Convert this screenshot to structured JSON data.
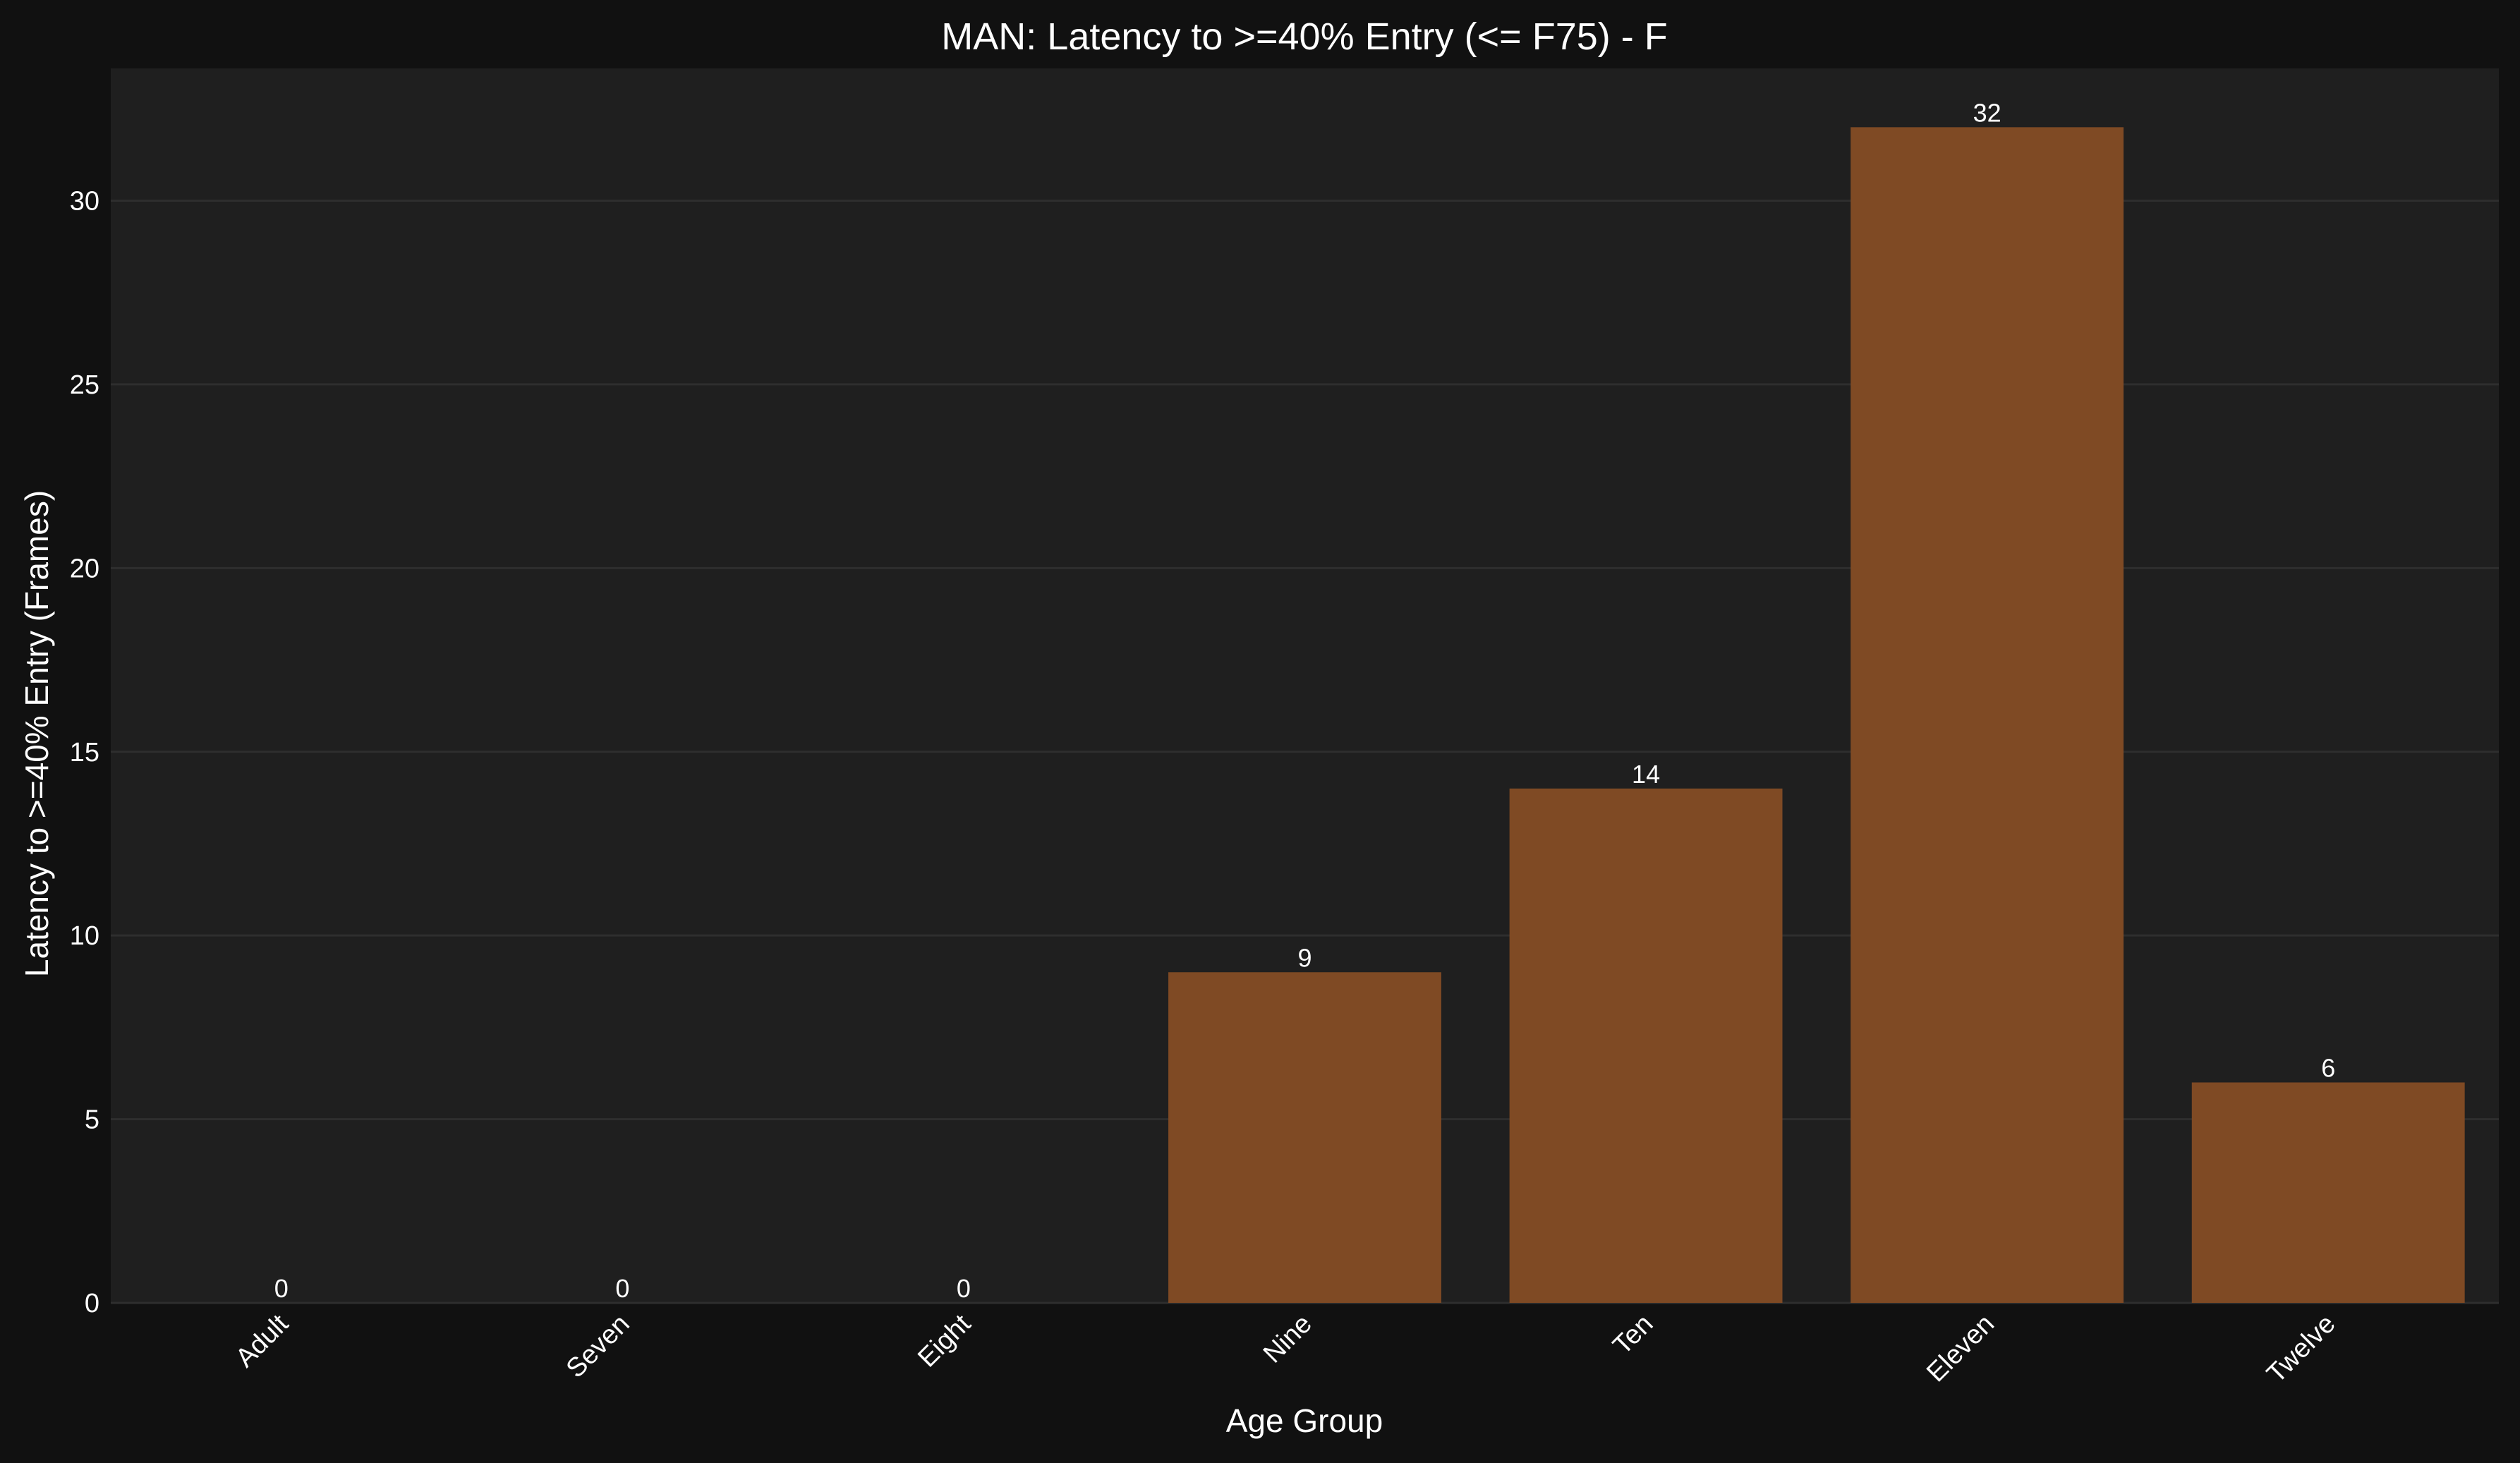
{
  "chart_data": {
    "type": "bar",
    "title": "MAN: Latency to >=40% Entry (<= F75) - F",
    "xlabel": "Age Group",
    "ylabel": "Latency to >=40% Entry (Frames)",
    "categories": [
      "Adult",
      "Seven",
      "Eight",
      "Nine",
      "Ten",
      "Eleven",
      "Twelve"
    ],
    "values": [
      0,
      0,
      0,
      9,
      14,
      32,
      6
    ],
    "data_labels": [
      "0",
      "0",
      "0",
      "9",
      "14",
      "32",
      "6"
    ],
    "ylim": [
      0,
      33.6
    ],
    "yticks": [
      0,
      5,
      10,
      15,
      20,
      25,
      30
    ],
    "ytick_labels": [
      "0",
      "5",
      "10",
      "15",
      "20",
      "25",
      "30"
    ],
    "grid": true,
    "legend": "none",
    "bar_color": "#7f4a24",
    "plot_background": "#1f1f1f",
    "figure_background": "#111111",
    "grid_color": "#2e2e2e"
  }
}
